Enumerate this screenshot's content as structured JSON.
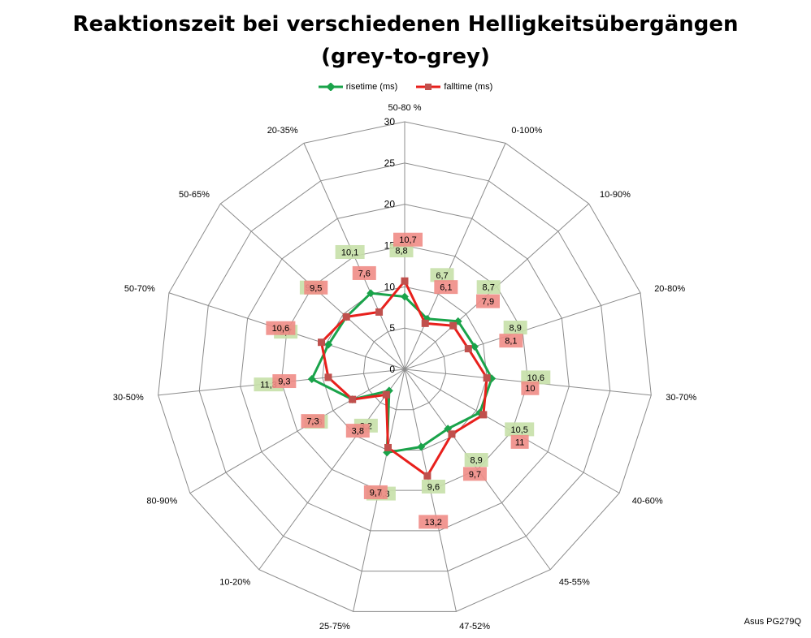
{
  "chart_data": {
    "type": "radar",
    "title": "Reaktionszeit bei verschiedenen Helligkeitsübergängen",
    "subtitle": "(grey-to-grey)",
    "categories": [
      "50-80 %",
      "0-100%",
      "10-90%",
      "20-80%",
      "30-70%",
      "40-60%",
      "45-55%",
      "47-52%",
      "25-75%",
      "10-20%",
      "80-90%",
      "30-50%",
      "50-70%",
      "50-65%",
      "20-35%"
    ],
    "rlim": [
      0,
      30
    ],
    "ticks": [
      "0",
      "5",
      "10",
      "15",
      "20",
      "25",
      "30"
    ],
    "grid": true,
    "legend_position": "top",
    "series": [
      {
        "name": "risetime (ms)",
        "color": "#1aa34a",
        "label_bg": "#c6e0a9",
        "values": [
          8.8,
          6.7,
          8.7,
          8.9,
          10.6,
          10.5,
          8.9,
          9.6,
          10.3,
          3.2,
          7.3,
          11.3,
          9.7,
          9.5,
          10.1
        ],
        "labels": [
          "8,8",
          "6,7",
          "8,7",
          "8,9",
          "10,6",
          "10,5",
          "8,9",
          "9,6",
          "10,3",
          "3,2",
          "7,3",
          "11,3",
          "9,7",
          "9,5",
          "10,1"
        ]
      },
      {
        "name": "falltime (ms)",
        "color": "#e8201c",
        "label_bg": "#f08c86",
        "values": [
          10.7,
          6.1,
          7.9,
          8.1,
          10.0,
          11.0,
          9.7,
          13.2,
          9.7,
          3.8,
          7.3,
          9.3,
          10.6,
          9.5,
          7.6
        ],
        "labels": [
          "10,7",
          "6,1",
          "7,9",
          "8,1",
          "10",
          "11",
          "9,7",
          "13,2",
          "9,7",
          "3,8",
          "7,3",
          "9,3",
          "10,6",
          "9,5",
          "7,6"
        ]
      }
    ]
  },
  "credit": "Asus PG279Q"
}
